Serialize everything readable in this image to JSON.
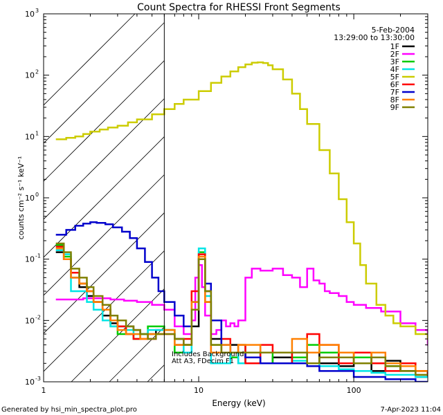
{
  "chart_data": {
    "type": "line",
    "title": "Count Spectra for RHESSI Front Segments",
    "xlabel": "Energy (keV)",
    "ylabel": "counts cm⁻² s⁻¹ keV⁻¹",
    "x_scale": "log",
    "y_scale": "log",
    "xlim": [
      1,
      300
    ],
    "ylim": [
      0.001,
      1000
    ],
    "x_ticks": [
      {
        "value": 1,
        "label": "1"
      },
      {
        "value": 10,
        "label": "10"
      },
      {
        "value": 100,
        "label": "100"
      }
    ],
    "y_ticks": [
      {
        "value": 0.001,
        "base": "10",
        "exp": "-3"
      },
      {
        "value": 0.01,
        "base": "10",
        "exp": "-2"
      },
      {
        "value": 0.1,
        "base": "10",
        "exp": "-1"
      },
      {
        "value": 1,
        "base": "10",
        "exp": "0"
      },
      {
        "value": 10,
        "base": "10",
        "exp": "1"
      },
      {
        "value": 100,
        "base": "10",
        "exp": "2"
      },
      {
        "value": 1000,
        "base": "10",
        "exp": "3"
      }
    ],
    "hatched_region_upper_energy": 6,
    "date": "5-Feb-2004",
    "time_range": "13:29:00 to 13:30:00",
    "annotation_lines": [
      "Includes Background",
      "Att A3, FDecim F1"
    ],
    "series": [
      {
        "name": "1F",
        "color": "#000000",
        "x": [
          1.2,
          1.35,
          1.5,
          1.7,
          1.9,
          2.1,
          2.4,
          2.7,
          3.0,
          3.4,
          3.8,
          4.2,
          4.7,
          5.3,
          6,
          7,
          8,
          9,
          10,
          11,
          12,
          14,
          16,
          18,
          20,
          25,
          30,
          40,
          50,
          60,
          80,
          100,
          130,
          160,
          200,
          250,
          300
        ],
        "y": [
          0.13,
          0.1,
          0.05,
          0.035,
          0.025,
          0.02,
          0.012,
          0.009,
          0.008,
          0.008,
          0.007,
          0.006,
          0.006,
          0.007,
          0.007,
          0.005,
          0.004,
          0.008,
          0.1,
          0.03,
          0.005,
          0.003,
          0.004,
          0.002,
          0.003,
          0.002,
          0.0025,
          0.002,
          0.003,
          0.002,
          0.0018,
          0.002,
          0.0015,
          0.0022,
          0.0015,
          0.0012,
          0.0014
        ]
      },
      {
        "name": "2F",
        "color": "#ff00ff",
        "x": [
          1.2,
          1.5,
          1.8,
          2.2,
          2.7,
          3.3,
          4,
          5,
          6,
          7,
          8,
          9,
          9.5,
          10,
          10.5,
          11,
          12,
          13,
          14,
          15,
          16,
          17,
          18,
          20,
          22,
          25,
          30,
          35,
          40,
          45,
          50,
          55,
          60,
          65,
          70,
          80,
          90,
          100,
          120,
          150,
          200,
          250,
          300
        ],
        "y": [
          0.022,
          0.022,
          0.023,
          0.023,
          0.022,
          0.021,
          0.02,
          0.018,
          0.015,
          0.008,
          0.006,
          0.01,
          0.05,
          0.08,
          0.035,
          0.012,
          0.006,
          0.007,
          0.01,
          0.008,
          0.009,
          0.008,
          0.01,
          0.05,
          0.07,
          0.065,
          0.07,
          0.055,
          0.05,
          0.035,
          0.07,
          0.045,
          0.04,
          0.03,
          0.028,
          0.025,
          0.02,
          0.018,
          0.016,
          0.014,
          0.009,
          0.007,
          0.004
        ]
      },
      {
        "name": "3F",
        "color": "#00cc00",
        "x": [
          1.2,
          1.35,
          1.5,
          1.7,
          1.9,
          2.1,
          2.4,
          2.7,
          3.0,
          3.4,
          3.8,
          4.2,
          4.7,
          5.3,
          6,
          7,
          8,
          9,
          10,
          11,
          12,
          14,
          16,
          18,
          20,
          25,
          30,
          40,
          50,
          60,
          80,
          100,
          130,
          160,
          200,
          250,
          300
        ],
        "y": [
          0.17,
          0.11,
          0.06,
          0.04,
          0.03,
          0.02,
          0.015,
          0.008,
          0.006,
          0.006,
          0.005,
          0.006,
          0.008,
          0.008,
          0.007,
          0.003,
          0.004,
          0.02,
          0.13,
          0.02,
          0.004,
          0.003,
          0.0025,
          0.004,
          0.003,
          0.002,
          0.003,
          0.0025,
          0.004,
          0.003,
          0.002,
          0.0025,
          0.002,
          0.0018,
          0.002,
          0.0015,
          0.0014
        ]
      },
      {
        "name": "4F",
        "color": "#00e5e5",
        "x": [
          1.2,
          1.35,
          1.5,
          1.7,
          1.9,
          2.1,
          2.4,
          2.7,
          3.0,
          3.4,
          3.8,
          4.2,
          4.7,
          5.3,
          6,
          7,
          8,
          9,
          10,
          11,
          12,
          14,
          16,
          18,
          20,
          25,
          30,
          40,
          50,
          60,
          80,
          100,
          130,
          160,
          200,
          250,
          300
        ],
        "y": [
          0.14,
          0.12,
          0.03,
          0.03,
          0.02,
          0.015,
          0.01,
          0.008,
          0.008,
          0.007,
          0.006,
          0.006,
          0.007,
          0.007,
          0.007,
          0.004,
          0.003,
          0.015,
          0.15,
          0.025,
          0.002,
          0.002,
          0.003,
          0.002,
          0.0025,
          0.002,
          0.002,
          0.0022,
          0.002,
          0.0018,
          0.0016,
          0.0015,
          0.0014,
          0.0013,
          0.0013,
          0.0012,
          0.0012
        ]
      },
      {
        "name": "5F",
        "color": "#cccc00",
        "x": [
          1.2,
          1.4,
          1.6,
          1.8,
          2,
          2.3,
          2.6,
          3,
          3.5,
          4,
          5,
          6,
          7,
          8,
          10,
          12,
          14,
          16,
          18,
          20,
          22,
          24,
          26,
          28,
          30,
          35,
          40,
          45,
          50,
          60,
          70,
          80,
          90,
          100,
          110,
          120,
          140,
          160,
          180,
          200,
          250,
          300
        ],
        "y": [
          9,
          9.5,
          10,
          11,
          12,
          13,
          14,
          15,
          17,
          19,
          23,
          28,
          34,
          40,
          55,
          75,
          95,
          115,
          135,
          150,
          160,
          162,
          158,
          145,
          125,
          85,
          50,
          28,
          16,
          6,
          2.5,
          0.95,
          0.4,
          0.18,
          0.08,
          0.04,
          0.018,
          0.012,
          0.009,
          0.008,
          0.006,
          0.005
        ]
      },
      {
        "name": "6F",
        "color": "#ff0000",
        "x": [
          1.2,
          1.35,
          1.5,
          1.7,
          1.9,
          2.1,
          2.4,
          2.7,
          3.0,
          3.4,
          3.8,
          4.2,
          4.7,
          5.3,
          6,
          7,
          8,
          9,
          10,
          11,
          12,
          14,
          16,
          18,
          20,
          25,
          30,
          40,
          50,
          60,
          80,
          100,
          130,
          160,
          200,
          250,
          300
        ],
        "y": [
          0.16,
          0.1,
          0.06,
          0.04,
          0.03,
          0.02,
          0.015,
          0.01,
          0.008,
          0.006,
          0.005,
          0.005,
          0.005,
          0.006,
          0.006,
          0.004,
          0.005,
          0.03,
          0.12,
          0.02,
          0.003,
          0.005,
          0.003,
          0.004,
          0.002,
          0.004,
          0.003,
          0.002,
          0.006,
          0.004,
          0.002,
          0.003,
          0.002,
          0.0015,
          0.002,
          0.0015,
          0.0013
        ]
      },
      {
        "name": "7F",
        "color": "#0000cc",
        "x": [
          1.2,
          1.4,
          1.6,
          1.8,
          2,
          2.2,
          2.5,
          2.8,
          3.2,
          3.6,
          4,
          4.5,
          5,
          5.5,
          6,
          7,
          8,
          9,
          10,
          11,
          12,
          14,
          16,
          18,
          20,
          25,
          30,
          40,
          50,
          60,
          80,
          100,
          130,
          160,
          200,
          250,
          300
        ],
        "y": [
          0.25,
          0.3,
          0.35,
          0.38,
          0.4,
          0.39,
          0.37,
          0.33,
          0.28,
          0.22,
          0.15,
          0.09,
          0.05,
          0.03,
          0.02,
          0.012,
          0.008,
          0.02,
          0.1,
          0.04,
          0.01,
          0.004,
          0.003,
          0.003,
          0.0025,
          0.002,
          0.002,
          0.002,
          0.0018,
          0.0015,
          0.0015,
          0.0012,
          0.0012,
          0.0011,
          0.0011,
          0.001,
          0.001
        ]
      },
      {
        "name": "8F",
        "color": "#ff8000",
        "x": [
          1.2,
          1.35,
          1.5,
          1.7,
          1.9,
          2.1,
          2.4,
          2.7,
          3.0,
          3.4,
          3.8,
          4.2,
          4.7,
          5.3,
          6,
          7,
          8,
          9,
          10,
          11,
          12,
          14,
          16,
          18,
          20,
          25,
          30,
          40,
          50,
          60,
          80,
          100,
          130,
          160,
          200,
          250,
          300
        ],
        "y": [
          0.15,
          0.1,
          0.05,
          0.04,
          0.03,
          0.02,
          0.015,
          0.01,
          0.007,
          0.006,
          0.006,
          0.005,
          0.006,
          0.006,
          0.007,
          0.004,
          0.004,
          0.02,
          0.11,
          0.02,
          0.003,
          0.004,
          0.003,
          0.004,
          0.004,
          0.003,
          0.003,
          0.005,
          0.003,
          0.004,
          0.003,
          0.002,
          0.003,
          0.002,
          0.0018,
          0.0015,
          0.0015
        ]
      },
      {
        "name": "9F",
        "color": "#808000",
        "x": [
          1.2,
          1.35,
          1.5,
          1.7,
          1.9,
          2.1,
          2.4,
          2.7,
          3.0,
          3.4,
          3.8,
          4.2,
          4.7,
          5.3,
          6,
          7,
          8,
          9,
          10,
          11,
          12,
          14,
          16,
          18,
          20,
          25,
          30,
          40,
          50,
          60,
          80,
          100,
          130,
          160,
          200,
          250,
          300
        ],
        "y": [
          0.18,
          0.13,
          0.07,
          0.05,
          0.035,
          0.025,
          0.018,
          0.012,
          0.01,
          0.008,
          0.007,
          0.006,
          0.005,
          0.006,
          0.006,
          0.005,
          0.004,
          0.015,
          0.1,
          0.03,
          0.004,
          0.003,
          0.003,
          0.003,
          0.003,
          0.003,
          0.003,
          0.003,
          0.002,
          0.0025,
          0.0025,
          0.002,
          0.0025,
          0.0018,
          0.0015,
          0.0013,
          0.0013
        ]
      }
    ]
  },
  "footer": {
    "generated_by": "Generated by hsi_min_spectra_plot.pro",
    "timestamp": "7-Apr-2023 11:04"
  }
}
